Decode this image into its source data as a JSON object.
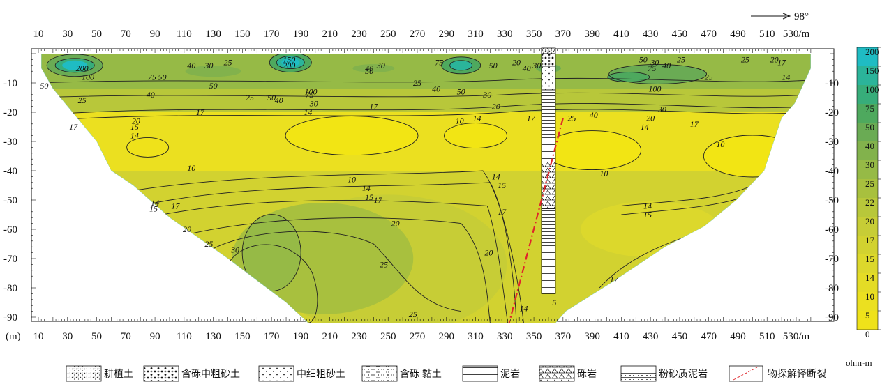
{
  "chart_data": {
    "type": "heatmap",
    "title": "",
    "direction_label": "98°",
    "x_unit": "/m",
    "y_unit": "(m)",
    "x_ticks": [
      10,
      30,
      50,
      70,
      90,
      110,
      130,
      150,
      170,
      190,
      210,
      230,
      250,
      270,
      290,
      310,
      330,
      350,
      370,
      390,
      410,
      430,
      450,
      470,
      490,
      510,
      530
    ],
    "y_ticks": [
      -10,
      -20,
      -30,
      -40,
      -50,
      -60,
      -70,
      -80,
      -90
    ],
    "xlim": [
      10,
      540
    ],
    "ylim": [
      -92,
      0
    ],
    "colorbar": {
      "unit": "ohm-m",
      "levels": [
        0,
        5,
        10,
        14,
        15,
        17,
        20,
        22,
        25,
        30,
        40,
        50,
        75,
        100,
        150,
        200
      ],
      "labels": [
        "0",
        "5",
        "10",
        "14",
        "15",
        "17",
        "20",
        "22",
        "25",
        "30",
        "40",
        "50",
        "75",
        "100",
        "150",
        "200"
      ],
      "colors": [
        "#f2e514",
        "#efe21a",
        "#ebe020",
        "#e4dc26",
        "#dcd82c",
        "#d2d230",
        "#c7cd36",
        "#b8c73a",
        "#a8c03e",
        "#96ba46",
        "#82b24c",
        "#6aab54",
        "#4ea95e",
        "#37ad7a",
        "#2bb49a",
        "#1fbcc3"
      ]
    },
    "contour_labels": [
      {
        "v": "200",
        "x": 40,
        "y": -5
      },
      {
        "v": "100",
        "x": 44,
        "y": -8
      },
      {
        "v": "50",
        "x": 14,
        "y": -11
      },
      {
        "v": "25",
        "x": 40,
        "y": -16
      },
      {
        "v": "17",
        "x": 34,
        "y": -25
      },
      {
        "v": "40",
        "x": 115,
        "y": -4
      },
      {
        "v": "30",
        "x": 127,
        "y": -4
      },
      {
        "v": "25",
        "x": 140,
        "y": -3
      },
      {
        "v": "50",
        "x": 130,
        "y": -11
      },
      {
        "v": "75",
        "x": 88,
        "y": -8
      },
      {
        "v": "50",
        "x": 95,
        "y": -8
      },
      {
        "v": "40",
        "x": 87,
        "y": -14
      },
      {
        "v": "20",
        "x": 77,
        "y": -23
      },
      {
        "v": "17",
        "x": 121,
        "y": -20
      },
      {
        "v": "15",
        "x": 76,
        "y": -25
      },
      {
        "v": "14",
        "x": 76,
        "y": -28
      },
      {
        "v": "150",
        "x": 182,
        "y": -2
      },
      {
        "v": "200",
        "x": 182,
        "y": -4
      },
      {
        "v": "50",
        "x": 170,
        "y": -15
      },
      {
        "v": "40",
        "x": 175,
        "y": -16
      },
      {
        "v": "100",
        "x": 197,
        "y": -13
      },
      {
        "v": "75",
        "x": 196,
        "y": -14
      },
      {
        "v": "30",
        "x": 199,
        "y": -17
      },
      {
        "v": "14",
        "x": 195,
        "y": -20
      },
      {
        "v": "25",
        "x": 155,
        "y": -15
      },
      {
        "v": "40",
        "x": 237,
        "y": -5
      },
      {
        "v": "50",
        "x": 237,
        "y": -6
      },
      {
        "v": "30",
        "x": 245,
        "y": -4
      },
      {
        "v": "17",
        "x": 240,
        "y": -18
      },
      {
        "v": "75",
        "x": 285,
        "y": -3
      },
      {
        "v": "25",
        "x": 270,
        "y": -10
      },
      {
        "v": "40",
        "x": 283,
        "y": -12
      },
      {
        "v": "50",
        "x": 300,
        "y": -13
      },
      {
        "v": "30",
        "x": 318,
        "y": -14
      },
      {
        "v": "10",
        "x": 299,
        "y": -23
      },
      {
        "v": "14",
        "x": 311,
        "y": -22
      },
      {
        "v": "20",
        "x": 324,
        "y": -18
      },
      {
        "v": "17",
        "x": 348,
        "y": -22
      },
      {
        "v": "20",
        "x": 338,
        "y": -3
      },
      {
        "v": "50",
        "x": 322,
        "y": -4
      },
      {
        "v": "40",
        "x": 345,
        "y": -5
      },
      {
        "v": "30",
        "x": 352,
        "y": -4
      },
      {
        "v": "75",
        "x": 357,
        "y": -15
      },
      {
        "v": "25",
        "x": 376,
        "y": -22
      },
      {
        "v": "40",
        "x": 391,
        "y": -21
      },
      {
        "v": "100",
        "x": 433,
        "y": -12
      },
      {
        "v": "30",
        "x": 438,
        "y": -19
      },
      {
        "v": "20",
        "x": 430,
        "y": -22
      },
      {
        "v": "14",
        "x": 426,
        "y": -25
      },
      {
        "v": "17",
        "x": 460,
        "y": -24
      },
      {
        "v": "50",
        "x": 425,
        "y": -2
      },
      {
        "v": "75",
        "x": 431,
        "y": -5
      },
      {
        "v": "30",
        "x": 433,
        "y": -3
      },
      {
        "v": "40",
        "x": 441,
        "y": -4
      },
      {
        "v": "25",
        "x": 451,
        "y": -2
      },
      {
        "v": "25",
        "x": 470,
        "y": -8
      },
      {
        "v": "25",
        "x": 495,
        "y": -2
      },
      {
        "v": "20",
        "x": 515,
        "y": -2
      },
      {
        "v": "17",
        "x": 520,
        "y": -3
      },
      {
        "v": "14",
        "x": 523,
        "y": -8
      },
      {
        "v": "10",
        "x": 478,
        "y": -31
      },
      {
        "v": "10",
        "x": 225,
        "y": -43
      },
      {
        "v": "14",
        "x": 235,
        "y": -46
      },
      {
        "v": "15",
        "x": 237,
        "y": -49
      },
      {
        "v": "17",
        "x": 243,
        "y": -50
      },
      {
        "v": "20",
        "x": 255,
        "y": -58
      },
      {
        "v": "14",
        "x": 324,
        "y": -42
      },
      {
        "v": "15",
        "x": 328,
        "y": -45
      },
      {
        "v": "17",
        "x": 328,
        "y": -54
      },
      {
        "v": "20",
        "x": 319,
        "y": -68
      },
      {
        "v": "25",
        "x": 247,
        "y": -72
      },
      {
        "v": "25",
        "x": 267,
        "y": -89
      },
      {
        "v": "10",
        "x": 398,
        "y": -41
      },
      {
        "v": "14",
        "x": 428,
        "y": -52
      },
      {
        "v": "15",
        "x": 428,
        "y": -55
      },
      {
        "v": "17",
        "x": 405,
        "y": -77
      },
      {
        "v": "14",
        "x": 90,
        "y": -51
      },
      {
        "v": "15",
        "x": 89,
        "y": -53
      },
      {
        "v": "17",
        "x": 104,
        "y": -52
      },
      {
        "v": "20",
        "x": 112,
        "y": -60
      },
      {
        "v": "25",
        "x": 127,
        "y": -65
      },
      {
        "v": "30",
        "x": 145,
        "y": -67
      },
      {
        "v": "10",
        "x": 115,
        "y": -39
      },
      {
        "v": "14",
        "x": 343,
        "y": -87
      },
      {
        "v": "5",
        "x": 364,
        "y": -85
      }
    ],
    "borehole": {
      "x": 360,
      "top": 0,
      "bottom": -82
    },
    "fault": {
      "x_top": 370,
      "y_top": -22,
      "x_bottom": 333,
      "y_bottom": -92
    },
    "legend": [
      {
        "symbol": "topsoil",
        "label": "耕植土"
      },
      {
        "symbol": "gravel-coarse-sand",
        "label": "含砾中粗砂土"
      },
      {
        "symbol": "fine-coarse-sand",
        "label": "中细粗砂土"
      },
      {
        "symbol": "gravel-clay",
        "label": "含砾 黏土"
      },
      {
        "symbol": "mudstone",
        "label": "泥岩"
      },
      {
        "symbol": "conglomerate",
        "label": "砾岩"
      },
      {
        "symbol": "silty-mudstone",
        "label": "粉砂质泥岩"
      },
      {
        "symbol": "fault-line",
        "label": "物探解译断裂"
      }
    ]
  }
}
